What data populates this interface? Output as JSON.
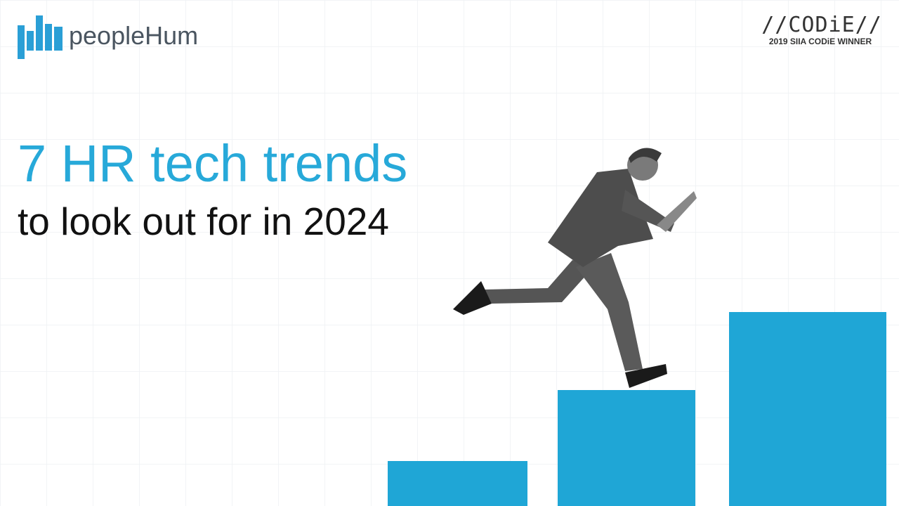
{
  "logo": {
    "name": "peopleHum"
  },
  "badge": {
    "title": "//CODiE//",
    "subtitle": "2019 SIIA CODiE WINNER"
  },
  "headline": {
    "title": "7 HR tech trends",
    "subtitle": "to look out for in 2024"
  }
}
